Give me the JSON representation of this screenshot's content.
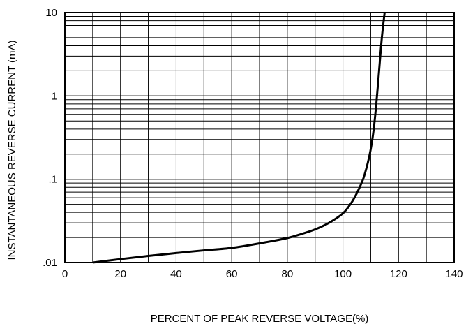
{
  "chart_data": {
    "type": "line",
    "title": "",
    "xlabel": "PERCENT OF PEAK REVERSE VOLTAGE(%)",
    "ylabel": "INSTANTANEOUS REVERSE CURRENT (mA)",
    "xlim": [
      0,
      140
    ],
    "ylim": [
      0.01,
      10
    ],
    "y_scale": "log",
    "grid": true,
    "legend": "none",
    "x_ticks": [
      0,
      20,
      40,
      60,
      80,
      100,
      120,
      140
    ],
    "x_tick_labels": [
      "0",
      "20",
      "40",
      "60",
      "80",
      "100",
      "120",
      "140"
    ],
    "y_ticks": [
      0.01,
      0.1,
      1,
      10
    ],
    "y_tick_labels": [
      ".01",
      ".1",
      "1",
      "10"
    ],
    "series": [
      {
        "x": [
          10,
          20,
          30,
          40,
          50,
          60,
          70,
          80,
          85,
          90,
          95,
          100,
          103,
          105,
          107,
          108,
          109,
          110,
          111,
          112,
          113,
          114,
          115
        ],
        "y": [
          0.01,
          0.011,
          0.012,
          0.013,
          0.014,
          0.015,
          0.017,
          0.0197,
          0.022,
          0.025,
          0.03,
          0.039,
          0.052,
          0.068,
          0.095,
          0.12,
          0.16,
          0.23,
          0.38,
          0.8,
          2.0,
          5.0,
          10.0
        ],
        "color": "#000000"
      }
    ]
  }
}
